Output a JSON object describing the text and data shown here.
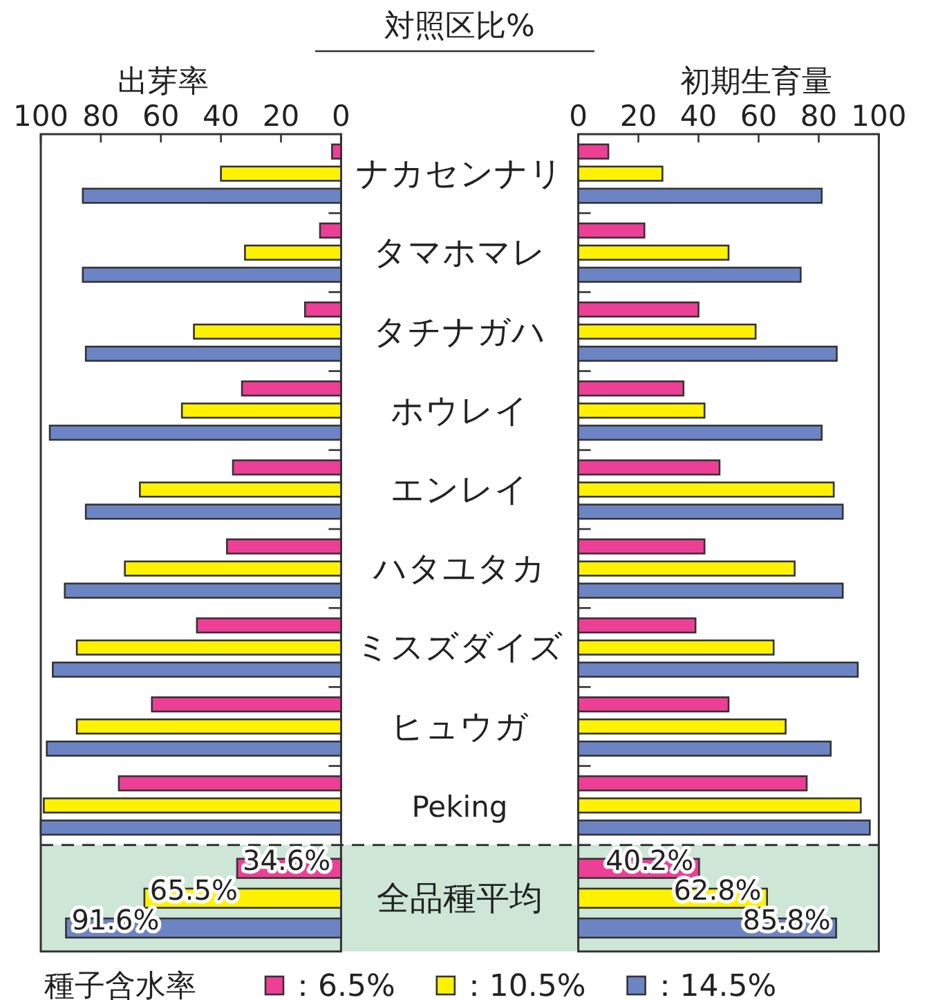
{
  "chart_data": [
    {
      "type": "bar",
      "orientation": "horizontal",
      "title": "対照区比%",
      "xlabel": "出芽率",
      "categories": [
        "ナカセンナリ",
        "タマホマレ",
        "タチナガハ",
        "ホウレイ",
        "エンレイ",
        "ハタユタカ",
        "ミスズダイズ",
        "ヒュウガ",
        "Peking",
        "全品種平均"
      ],
      "series": [
        {
          "name": "：6.5%",
          "color": "#ee3f96",
          "values": [
            3,
            7,
            12,
            33,
            36,
            38,
            48,
            63,
            74,
            34.6
          ],
          "value_labels": [
            null,
            null,
            null,
            null,
            null,
            null,
            null,
            null,
            null,
            "34.6%"
          ]
        },
        {
          "name": "：10.5%",
          "color": "#fff200",
          "values": [
            40,
            32,
            49,
            53,
            67,
            72,
            88,
            88,
            99,
            65.5
          ],
          "value_labels": [
            null,
            null,
            null,
            null,
            null,
            null,
            null,
            null,
            null,
            "65.5%"
          ]
        },
        {
          "name": "：14.5%",
          "color": "#6d84c4",
          "values": [
            86,
            86,
            85,
            97,
            85,
            92,
            96,
            98,
            100,
            91.6
          ],
          "value_labels": [
            null,
            null,
            null,
            null,
            null,
            null,
            null,
            null,
            null,
            "91.6%"
          ]
        }
      ],
      "xlim": [
        100,
        0
      ],
      "xticks": [
        100,
        80,
        60,
        40,
        20,
        0
      ],
      "legend": "bottom",
      "legend_title": "種子含水率"
    },
    {
      "type": "bar",
      "orientation": "horizontal",
      "xlabel": "初期生育量",
      "categories": [
        null,
        null,
        null,
        null,
        null,
        null,
        null,
        null,
        null,
        null
      ],
      "series": [
        {
          "color": "#ee3f96",
          "values": [
            10,
            22,
            40,
            35,
            47,
            42,
            39,
            50,
            76,
            40.2
          ],
          "value_labels": [
            null,
            null,
            null,
            null,
            null,
            null,
            null,
            null,
            null,
            "40.2%"
          ]
        },
        {
          "color": "#fff200",
          "values": [
            28,
            50,
            59,
            42,
            85,
            72,
            65,
            69,
            94,
            62.8
          ],
          "value_labels": [
            null,
            null,
            null,
            null,
            null,
            null,
            null,
            null,
            null,
            "62.8%"
          ]
        },
        {
          "color": "#6d84c4",
          "values": [
            81,
            74,
            86,
            81,
            88,
            88,
            93,
            84,
            97,
            85.8
          ],
          "value_labels": [
            null,
            null,
            null,
            null,
            null,
            null,
            null,
            null,
            null,
            "85.8%"
          ]
        }
      ],
      "xlim": [
        0,
        100
      ],
      "xticks": [
        0,
        20,
        40,
        60,
        80,
        100
      ],
      "tick_labels": "x"
    }
  ]
}
